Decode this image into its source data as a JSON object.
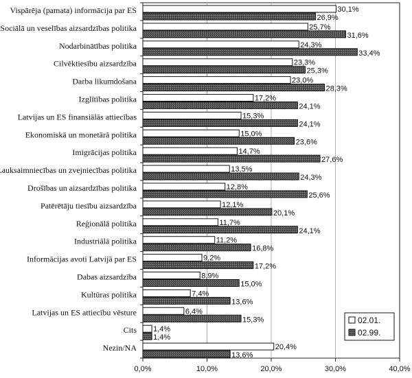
{
  "chart_data": {
    "type": "bar",
    "orientation": "horizontal",
    "title": "",
    "xlabel": "",
    "ylabel": "",
    "xlim": [
      0,
      40
    ],
    "xticks": [
      0,
      10,
      20,
      30,
      40
    ],
    "xtick_labels": [
      "0,0%",
      "10,0%",
      "20,0%",
      "30,0%",
      "40,0%"
    ],
    "grid": true,
    "legend_position": "right",
    "categories": [
      "Vispārēja (pamata) informācija par ES",
      "Sociālā un veselības aizsardzības politika",
      "Nodarbinātības politika",
      "Cilvēktiesību aizsardzība",
      "Darba likumdošana",
      "Izglītības politika",
      "Latvijas un ES finansiālās attiecības",
      "Ekonomiskā un monetārā politika",
      "Imigrācijas politika",
      "Lauksaimniecības un zvejniecības politika",
      "Drošības un aizsardzības politika",
      "Patērētāju tiesību aizsardzība",
      "Reģionālā politika",
      "Industriālā politika",
      "Informācijas avoti Latvijā par ES",
      "Dabas aizsardzība",
      "Kultūras politika",
      "Latvijas un ES attiecību vēsture",
      "Cits",
      "Nezin/NA"
    ],
    "series": [
      {
        "name": "02.01.",
        "color": "#ffffff",
        "values": [
          30.1,
          25.7,
          24.3,
          23.3,
          23.0,
          17.2,
          15.3,
          15.0,
          14.7,
          13.5,
          12.8,
          12.1,
          11.7,
          11.2,
          9.2,
          8.9,
          7.4,
          6.4,
          1.4,
          20.4
        ],
        "labels": [
          "30,1%",
          "25,7%",
          "24,3%",
          "23,3%",
          "23,0%",
          "17,2%",
          "15,3%",
          "15,0%",
          "14,7%",
          "13,5%",
          "12,8%",
          "12,1%",
          "11,7%",
          "11,2%",
          "9,2%",
          "8,9%",
          "7,4%",
          "6,4%",
          "1,4%",
          "20,4%"
        ]
      },
      {
        "name": "02.99.",
        "color": "#555555",
        "values": [
          26.9,
          31.6,
          33.4,
          25.3,
          28.3,
          24.1,
          24.1,
          23.6,
          27.6,
          24.3,
          25.6,
          20.1,
          24.1,
          16.8,
          17.2,
          15.0,
          13.6,
          15.3,
          1.4,
          13.6
        ],
        "labels": [
          "26,9%",
          "31,6%",
          "33,4%",
          "25,3%",
          "28,3%",
          "24,1%",
          "24,1%",
          "23,6%",
          "27,6%",
          "24,3%",
          "25,6%",
          "20,1%",
          "24,1%",
          "16,8%",
          "17,2%",
          "15,0%",
          "13,6%",
          "15,3%",
          "1,4%",
          "13,6%"
        ]
      }
    ]
  }
}
